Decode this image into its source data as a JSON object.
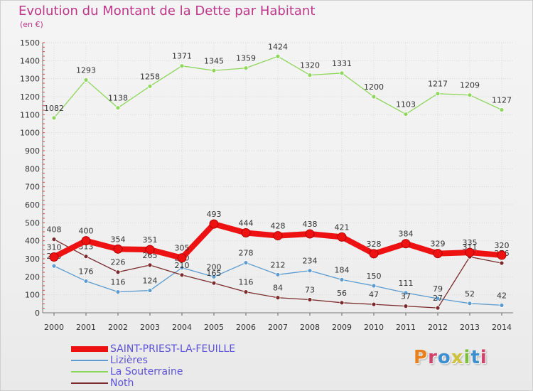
{
  "title": "Evolution du Montant de la Dette par Habitant",
  "unit": "(en €)",
  "logo": {
    "text": "Proxiti",
    "colors": [
      "#e8801b",
      "#d1416b",
      "#3d8fd0",
      "#cfc23a",
      "#7bbf3a",
      "#3d8fd0",
      "#d1416b"
    ]
  },
  "chart_data": {
    "type": "line",
    "title": "Evolution du Montant de la Dette par Habitant",
    "ylabel": "(en €)",
    "xlabel": "",
    "ylim": [
      0,
      1500
    ],
    "yticks": [
      0,
      100,
      200,
      300,
      400,
      500,
      600,
      700,
      800,
      900,
      1000,
      1100,
      1200,
      1300,
      1400,
      1500
    ],
    "categories": [
      "2000",
      "2001",
      "2002",
      "2003",
      "2004",
      "2005",
      "2006",
      "2007",
      "2008",
      "2009",
      "2010",
      "2011",
      "2012",
      "2013",
      "2014"
    ],
    "series": [
      {
        "name": "SAINT-PRIEST-LA-FEUILLE",
        "color": "#ee1111",
        "values": [
          310,
          400,
          354,
          351,
          305,
          493,
          444,
          428,
          438,
          421,
          328,
          384,
          329,
          335,
          320
        ]
      },
      {
        "name": "Lizières",
        "color": "#5b9bd0",
        "values": [
          260,
          176,
          116,
          124,
          250,
          200,
          278,
          212,
          234,
          184,
          150,
          111,
          79,
          52,
          42
        ]
      },
      {
        "name": "La Souterraine",
        "color": "#8fd65c",
        "values": [
          1082,
          1293,
          1138,
          1258,
          1371,
          1345,
          1359,
          1424,
          1320,
          1331,
          1200,
          1103,
          1217,
          1209,
          1127
        ]
      },
      {
        "name": "Noth",
        "color": "#7a2a2a",
        "values": [
          408,
          313,
          226,
          265,
          210,
          165,
          116,
          84,
          73,
          56,
          47,
          37,
          27,
          311,
          276
        ]
      }
    ],
    "legend": "bottom-left",
    "grid": true
  }
}
